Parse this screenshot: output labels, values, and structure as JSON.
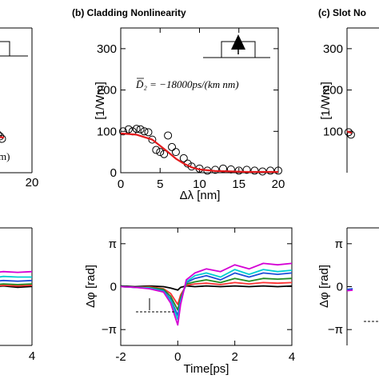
{
  "chart_data": [
    {
      "id": "a_top",
      "type": "line",
      "title": "",
      "xlim": [
        0,
        20
      ],
      "ylim": [
        0,
        350
      ],
      "xticks": [
        20
      ],
      "yticks": [],
      "series": [
        {
          "kind": "scatter",
          "color": "#000000",
          "x": [
            0,
            1,
            2,
            3,
            4,
            5
          ],
          "y": [
            86,
            94,
            97,
            92,
            88,
            82
          ]
        },
        {
          "kind": "line",
          "color": "#e31a1c",
          "x": [
            0,
            2,
            4,
            6
          ],
          "y": [
            88,
            88,
            86,
            85
          ]
        }
      ],
      "annotation_fragment": "m)"
    },
    {
      "id": "b_top",
      "type": "scatter",
      "title": "(b) Cladding Nonlinearity",
      "xlabel": "Δλ [nm]",
      "ylabel": "[1/Wm]",
      "xlim": [
        0,
        20
      ],
      "ylim": [
        0,
        350
      ],
      "xticks": [
        0,
        5,
        10,
        15,
        20
      ],
      "yticks": [
        0,
        100,
        200,
        300
      ],
      "equation": "D̄₂ = −18000ps/(km nm)",
      "series": [
        {
          "kind": "scatter",
          "color": "#000000",
          "x": [
            0.3,
            1,
            1.5,
            2,
            2.5,
            3,
            3.5,
            4,
            4.5,
            5,
            5.5,
            6,
            6.5,
            7,
            8,
            8.5,
            9,
            10,
            11,
            12,
            13,
            14,
            15,
            16,
            17,
            18,
            19,
            20
          ],
          "y": [
            100,
            105,
            100,
            106,
            105,
            100,
            98,
            80,
            55,
            50,
            45,
            90,
            62,
            50,
            35,
            22,
            15,
            10,
            5,
            7,
            10,
            8,
            5,
            7,
            5,
            3,
            5,
            5
          ]
        },
        {
          "kind": "line",
          "color": "#e31a1c",
          "x": [
            0,
            2,
            4,
            5,
            6,
            7,
            8,
            9,
            10,
            12,
            14,
            16,
            18,
            20
          ],
          "y": [
            95,
            92,
            80,
            65,
            50,
            34,
            22,
            13,
            8,
            4,
            3,
            2,
            2,
            2
          ]
        }
      ]
    },
    {
      "id": "c_top",
      "type": "line",
      "title": "(c) Slot No",
      "ylabel": "[1/Wm]",
      "ylim": [
        0,
        350
      ],
      "yticks": [
        0,
        100,
        200,
        300
      ],
      "series": [
        {
          "kind": "scatter",
          "color": "#000000",
          "x": [
            0.2,
            0.5
          ],
          "y": [
            98,
            92
          ]
        },
        {
          "kind": "line",
          "color": "#e31a1c",
          "x": [
            0,
            0.6
          ],
          "y": [
            100,
            96
          ]
        }
      ]
    },
    {
      "id": "a_bottom",
      "type": "line",
      "xlim": [
        -2,
        4
      ],
      "ylim": [
        -4.3,
        4.3
      ],
      "xticks": [
        4
      ],
      "series": [
        {
          "name": "",
          "color": "#000000",
          "x": [
            1.5,
            2,
            2.5,
            3,
            3.5,
            4
          ],
          "y": [
            -0.05,
            0.05,
            -0.05,
            0.05,
            -0.05,
            0.02
          ]
        },
        {
          "name": "",
          "color": "#ff3333",
          "x": [
            1.5,
            2,
            2.5,
            3,
            3.5,
            4
          ],
          "y": [
            0.05,
            0.1,
            0.0,
            0.1,
            0.05,
            0.1
          ]
        },
        {
          "name": "",
          "color": "#228b22",
          "x": [
            1.5,
            2,
            2.5,
            3,
            3.5,
            4
          ],
          "y": [
            0.15,
            0.2,
            0.1,
            0.2,
            0.15,
            0.2
          ]
        },
        {
          "name": "",
          "color": "#1f4fd8",
          "x": [
            1.5,
            2,
            2.5,
            3,
            3.5,
            4
          ],
          "y": [
            0.35,
            0.45,
            0.35,
            0.45,
            0.4,
            0.45
          ]
        },
        {
          "name": "",
          "color": "#00ced1",
          "x": [
            1.5,
            2,
            2.5,
            3,
            3.5,
            4
          ],
          "y": [
            0.6,
            0.7,
            0.6,
            0.75,
            0.7,
            0.7
          ]
        },
        {
          "name": "",
          "color": "#d400d4",
          "x": [
            1.5,
            2,
            2.5,
            3,
            3.5,
            4
          ],
          "y": [
            0.95,
            1.05,
            1.0,
            1.1,
            1.05,
            1.1
          ]
        }
      ]
    },
    {
      "id": "b_bottom",
      "type": "line",
      "xlabel": "Time[ps]",
      "ylabel": "Δφ  [rad]",
      "xlim": [
        -2,
        4
      ],
      "ylim": [
        -4.3,
        4.3
      ],
      "xticks": [
        -2,
        0,
        2,
        4
      ],
      "yticklabels": [
        "π",
        "0",
        "−π"
      ],
      "yticks": [
        3.1416,
        0,
        -3.1416
      ],
      "series": [
        {
          "name": "",
          "color": "#000000",
          "x": [
            -2,
            -1.5,
            -1,
            -0.5,
            -0.25,
            0,
            0.1,
            0.3,
            0.6,
            1,
            1.5,
            2,
            2.5,
            3,
            3.5,
            4
          ],
          "y": [
            0.05,
            0.0,
            0.05,
            0.0,
            -0.1,
            -0.25,
            -0.05,
            0.05,
            0.0,
            0.05,
            0.0,
            0.05,
            0.0,
            0.05,
            0.0,
            0.05
          ]
        },
        {
          "name": "",
          "color": "#ff3333",
          "x": [
            -2,
            -1.5,
            -1,
            -0.5,
            -0.25,
            0,
            0.1,
            0.3,
            0.6,
            1,
            1.5,
            2,
            2.5,
            3,
            3.5,
            4
          ],
          "y": [
            0.0,
            -0.05,
            0.0,
            -0.15,
            -0.5,
            -1.3,
            -0.6,
            0.1,
            0.2,
            0.25,
            0.15,
            0.3,
            0.2,
            0.3,
            0.25,
            0.3
          ]
        },
        {
          "name": "",
          "color": "#228b22",
          "x": [
            -2,
            -1.5,
            -1,
            -0.5,
            -0.25,
            0,
            0.1,
            0.3,
            0.6,
            1,
            1.5,
            2,
            2.5,
            3,
            3.5,
            4
          ],
          "y": [
            0.0,
            -0.05,
            -0.05,
            -0.2,
            -0.7,
            -1.7,
            -0.8,
            0.2,
            0.35,
            0.5,
            0.3,
            0.6,
            0.4,
            0.6,
            0.55,
            0.6
          ]
        },
        {
          "name": "",
          "color": "#1f4fd8",
          "x": [
            -2,
            -1.5,
            -1,
            -0.5,
            -0.25,
            0,
            0.1,
            0.3,
            0.6,
            1,
            1.5,
            2,
            2.5,
            3,
            3.5,
            4
          ],
          "y": [
            0.0,
            -0.05,
            -0.1,
            -0.3,
            -0.9,
            -2.1,
            -1.0,
            0.3,
            0.6,
            0.8,
            0.5,
            1.0,
            0.7,
            1.0,
            0.9,
            1.0
          ]
        },
        {
          "name": "",
          "color": "#00ced1",
          "x": [
            -2,
            -1.5,
            -1,
            -0.5,
            -0.25,
            0,
            0.1,
            0.3,
            0.6,
            1,
            1.5,
            2,
            2.5,
            3,
            3.5,
            4
          ],
          "y": [
            0.0,
            -0.05,
            -0.1,
            -0.35,
            -1.0,
            -2.4,
            -1.1,
            0.35,
            0.8,
            1.0,
            0.7,
            1.25,
            0.9,
            1.25,
            1.1,
            1.2
          ]
        },
        {
          "name": "",
          "color": "#d400d4",
          "x": [
            -2,
            -1.5,
            -1,
            -0.5,
            -0.25,
            0,
            0.1,
            0.3,
            0.6,
            1,
            1.5,
            2,
            2.5,
            3,
            3.5,
            4
          ],
          "y": [
            0.0,
            -0.05,
            -0.15,
            -0.4,
            -1.2,
            -2.8,
            -1.3,
            0.5,
            1.0,
            1.3,
            1.1,
            1.6,
            1.3,
            1.7,
            1.6,
            1.7
          ]
        }
      ]
    },
    {
      "id": "c_bottom",
      "type": "line",
      "ylabel": "Δφ  [rad]",
      "yticklabels": [
        "π",
        "0",
        "−π"
      ],
      "yticks": [
        3.1416,
        0,
        -3.1416
      ],
      "series": [
        {
          "name": "",
          "color": "#d400d4",
          "x": [
            -2,
            -1.8
          ],
          "y": [
            -0.3,
            -0.25
          ]
        },
        {
          "name": "",
          "color": "#1f4fd8",
          "x": [
            -2,
            -1.8
          ],
          "y": [
            -0.2,
            -0.15
          ]
        }
      ]
    }
  ],
  "ticklabels": {
    "a_top_x20": "20",
    "b_top_x": [
      "0",
      "5",
      "10",
      "15",
      "20"
    ],
    "b_top_y": [
      "0",
      "100",
      "200",
      "300"
    ],
    "c_top_y": [
      "100",
      "200",
      "300"
    ],
    "a_bottom_x4": "4",
    "b_bottom_x": [
      "-2",
      "0",
      "2",
      "4"
    ],
    "b_bottom_y": [
      "π",
      "0",
      "−π"
    ],
    "c_bottom_y": [
      "π",
      "0",
      "−π"
    ]
  },
  "colors": {
    "fit": "#e31a1c",
    "marker": "#000000",
    "arrow": "#000000"
  },
  "icons": {
    "b_top_inset": "waveguide-arrow-icon",
    "a_top_inset": "waveguide-icon"
  }
}
